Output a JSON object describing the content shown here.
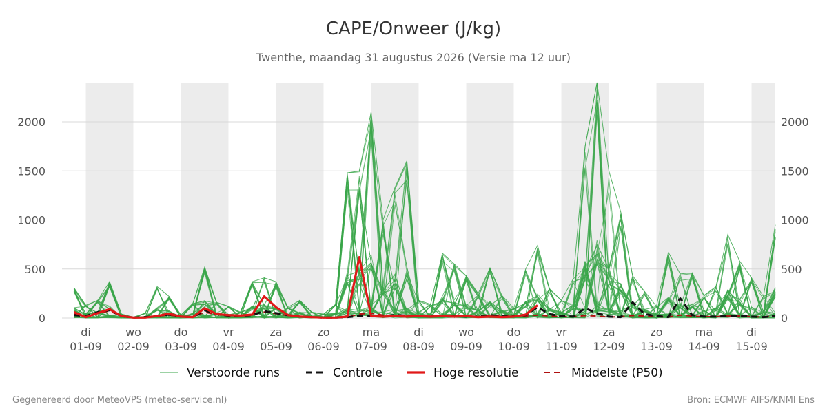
{
  "title": "CAPE/Onweer (J/kg)",
  "subtitle": "Twenthe, maandag 31 augustus 2026 (Versie ma 12 uur)",
  "footer": {
    "left": "Gegenereerd door MeteoVPS (meteo-service.nl)",
    "right": "Bron: ECMWF AIFS/KNMI Ens"
  },
  "colors": {
    "ensemble": "#3aa64a",
    "control": "#111111",
    "highres": "#e01818",
    "median": "#b01010",
    "weekend_shade": "#ececec",
    "grid": "#d8d8d8"
  },
  "chart_data": {
    "type": "line",
    "x_unit": "days since 31-08-2026 12:00",
    "xlim": [
      0,
      15
    ],
    "ylim": [
      0,
      2400
    ],
    "yticks": [
      0,
      500,
      1000,
      1500,
      2000
    ],
    "grid": "horizontal",
    "legend_position": "bottom",
    "x_ticks": [
      {
        "day": "di",
        "date": "01-09",
        "x": 0.5
      },
      {
        "day": "wo",
        "date": "02-09",
        "x": 1.5
      },
      {
        "day": "do",
        "date": "03-09",
        "x": 2.5
      },
      {
        "day": "vr",
        "date": "04-09",
        "x": 3.5
      },
      {
        "day": "za",
        "date": "05-09",
        "x": 4.5
      },
      {
        "day": "zo",
        "date": "06-09",
        "x": 5.5
      },
      {
        "day": "ma",
        "date": "07-09",
        "x": 6.5
      },
      {
        "day": "di",
        "date": "08-09",
        "x": 7.5
      },
      {
        "day": "wo",
        "date": "09-09",
        "x": 8.5
      },
      {
        "day": "do",
        "date": "10-09",
        "x": 9.5
      },
      {
        "day": "vr",
        "date": "11-09",
        "x": 10.5
      },
      {
        "day": "za",
        "date": "12-09",
        "x": 11.5
      },
      {
        "day": "zo",
        "date": "13-09",
        "x": 12.5
      },
      {
        "day": "ma",
        "date": "14-09",
        "x": 13.5
      },
      {
        "day": "di",
        "date": "15-09",
        "x": 14.5
      }
    ],
    "shaded_bands": [
      [
        0.5,
        1.5
      ],
      [
        2.5,
        3.5
      ],
      [
        4.5,
        5.5
      ],
      [
        6.5,
        7.5
      ],
      [
        8.5,
        9.5
      ],
      [
        10.5,
        11.5
      ],
      [
        12.5,
        13.5
      ],
      [
        14.5,
        15
      ]
    ],
    "legend": [
      {
        "key": "ensemble",
        "label": "Verstoorde runs"
      },
      {
        "key": "control",
        "label": "Controle"
      },
      {
        "key": "highres",
        "label": "Hoge resolutie"
      },
      {
        "key": "median",
        "label": "Middelste (P50)"
      }
    ],
    "series": [
      {
        "name": "Hoge resolutie",
        "key": "highres",
        "x": [
          0.25,
          0.5,
          0.75,
          1.0,
          1.25,
          1.5,
          1.75,
          2.0,
          2.25,
          2.5,
          2.75,
          3.0,
          3.25,
          3.5,
          3.75,
          4.0,
          4.25,
          4.5,
          4.75,
          5.0,
          5.25,
          5.5,
          5.75,
          6.0,
          6.25,
          6.5,
          6.75,
          7.0,
          7.25,
          7.5,
          7.75,
          8.0,
          8.25,
          8.5,
          8.75,
          9.0,
          9.25,
          9.5,
          9.75,
          10.0
        ],
        "y": [
          60,
          10,
          50,
          90,
          20,
          5,
          5,
          20,
          45,
          15,
          10,
          100,
          40,
          30,
          25,
          35,
          220,
          110,
          30,
          15,
          10,
          5,
          5,
          15,
          620,
          20,
          15,
          20,
          15,
          20,
          15,
          20,
          15,
          20,
          10,
          15,
          10,
          15,
          35,
          130
        ]
      },
      {
        "name": "Controle",
        "key": "control",
        "x": [
          0.25,
          0.5,
          0.75,
          1.0,
          1.25,
          1.5,
          1.75,
          2.0,
          2.25,
          2.5,
          2.75,
          3.0,
          3.25,
          3.5,
          3.75,
          4.0,
          4.25,
          4.5,
          4.75,
          5.0,
          5.25,
          5.5,
          5.75,
          6.0,
          6.25,
          6.5,
          6.75,
          7.0,
          7.25,
          7.5,
          7.75,
          8.0,
          8.25,
          8.5,
          8.75,
          9.0,
          9.25,
          9.5,
          9.75,
          10.0,
          10.25,
          10.5,
          10.75,
          11.0,
          11.25,
          11.5,
          11.75,
          12.0,
          12.25,
          12.5,
          12.75,
          13.0,
          13.25,
          13.5,
          13.75,
          14.0,
          14.25,
          14.5,
          14.75,
          15.0
        ],
        "y": [
          30,
          20,
          60,
          80,
          20,
          5,
          10,
          20,
          35,
          15,
          10,
          80,
          40,
          25,
          20,
          30,
          70,
          50,
          30,
          15,
          10,
          5,
          5,
          10,
          20,
          25,
          20,
          30,
          25,
          20,
          15,
          25,
          20,
          15,
          15,
          30,
          20,
          20,
          30,
          110,
          40,
          20,
          15,
          100,
          50,
          15,
          10,
          160,
          40,
          20,
          10,
          200,
          30,
          15,
          15,
          20,
          25,
          15,
          10,
          20
        ]
      },
      {
        "name": "Middelste (P50)",
        "key": "median",
        "x": [
          0.25,
          0.5,
          0.75,
          1.0,
          1.25,
          1.5,
          1.75,
          2.0,
          2.25,
          2.5,
          2.75,
          3.0,
          3.25,
          3.5,
          3.75,
          4.0,
          4.25,
          4.5,
          4.75,
          5.0,
          5.25,
          5.5,
          5.75,
          6.0,
          6.25,
          6.5,
          6.75,
          7.0,
          7.25,
          7.5,
          7.75,
          8.0,
          8.25,
          8.5,
          8.75,
          9.0,
          9.25,
          9.5,
          9.75,
          10.0,
          10.25,
          10.5,
          10.75,
          11.0,
          11.25,
          11.5,
          11.75,
          12.0,
          12.25,
          12.5,
          12.75,
          13.0,
          13.25,
          13.5,
          13.75,
          14.0,
          14.25,
          14.5,
          14.75,
          15.0
        ],
        "y": [
          40,
          25,
          55,
          70,
          20,
          5,
          10,
          20,
          30,
          15,
          10,
          60,
          35,
          20,
          20,
          35,
          60,
          45,
          25,
          15,
          10,
          5,
          5,
          10,
          40,
          50,
          30,
          25,
          20,
          20,
          15,
          25,
          20,
          25,
          15,
          25,
          20,
          20,
          20,
          30,
          20,
          15,
          15,
          25,
          20,
          10,
          15,
          25,
          20,
          15,
          10,
          30,
          20,
          15,
          15,
          20,
          20,
          15,
          10,
          20
        ]
      },
      {
        "name": "Verstoorde runs",
        "key": "ensemble",
        "note": "envelope of members",
        "x": [
          0.25,
          0.5,
          0.75,
          1.0,
          1.25,
          1.5,
          1.75,
          2.0,
          2.25,
          2.5,
          2.75,
          3.0,
          3.25,
          3.5,
          3.75,
          4.0,
          4.25,
          4.5,
          4.75,
          5.0,
          5.25,
          5.5,
          5.75,
          6.0,
          6.25,
          6.5,
          6.75,
          7.0,
          7.25,
          7.5,
          7.75,
          8.0,
          8.25,
          8.5,
          8.75,
          9.0,
          9.25,
          9.5,
          9.75,
          10.0,
          10.25,
          10.5,
          10.75,
          11.0,
          11.25,
          11.5,
          11.75,
          12.0,
          12.25,
          12.5,
          12.75,
          13.0,
          13.25,
          13.5,
          13.75,
          14.0,
          14.25,
          14.5,
          14.75,
          15.0
        ],
        "y": [
          310,
          130,
          180,
          370,
          40,
          10,
          50,
          320,
          220,
          30,
          150,
          520,
          160,
          120,
          60,
          370,
          410,
          370,
          110,
          180,
          60,
          40,
          140,
          1480,
          1500,
          2100,
          1000,
          1330,
          1600,
          180,
          140,
          660,
          550,
          430,
          250,
          510,
          230,
          100,
          500,
          740,
          300,
          180,
          400,
          1750,
          2400,
          1500,
          1080,
          430,
          270,
          120,
          670,
          450,
          460,
          230,
          320,
          850,
          580,
          410,
          220,
          950
        ]
      }
    ]
  }
}
